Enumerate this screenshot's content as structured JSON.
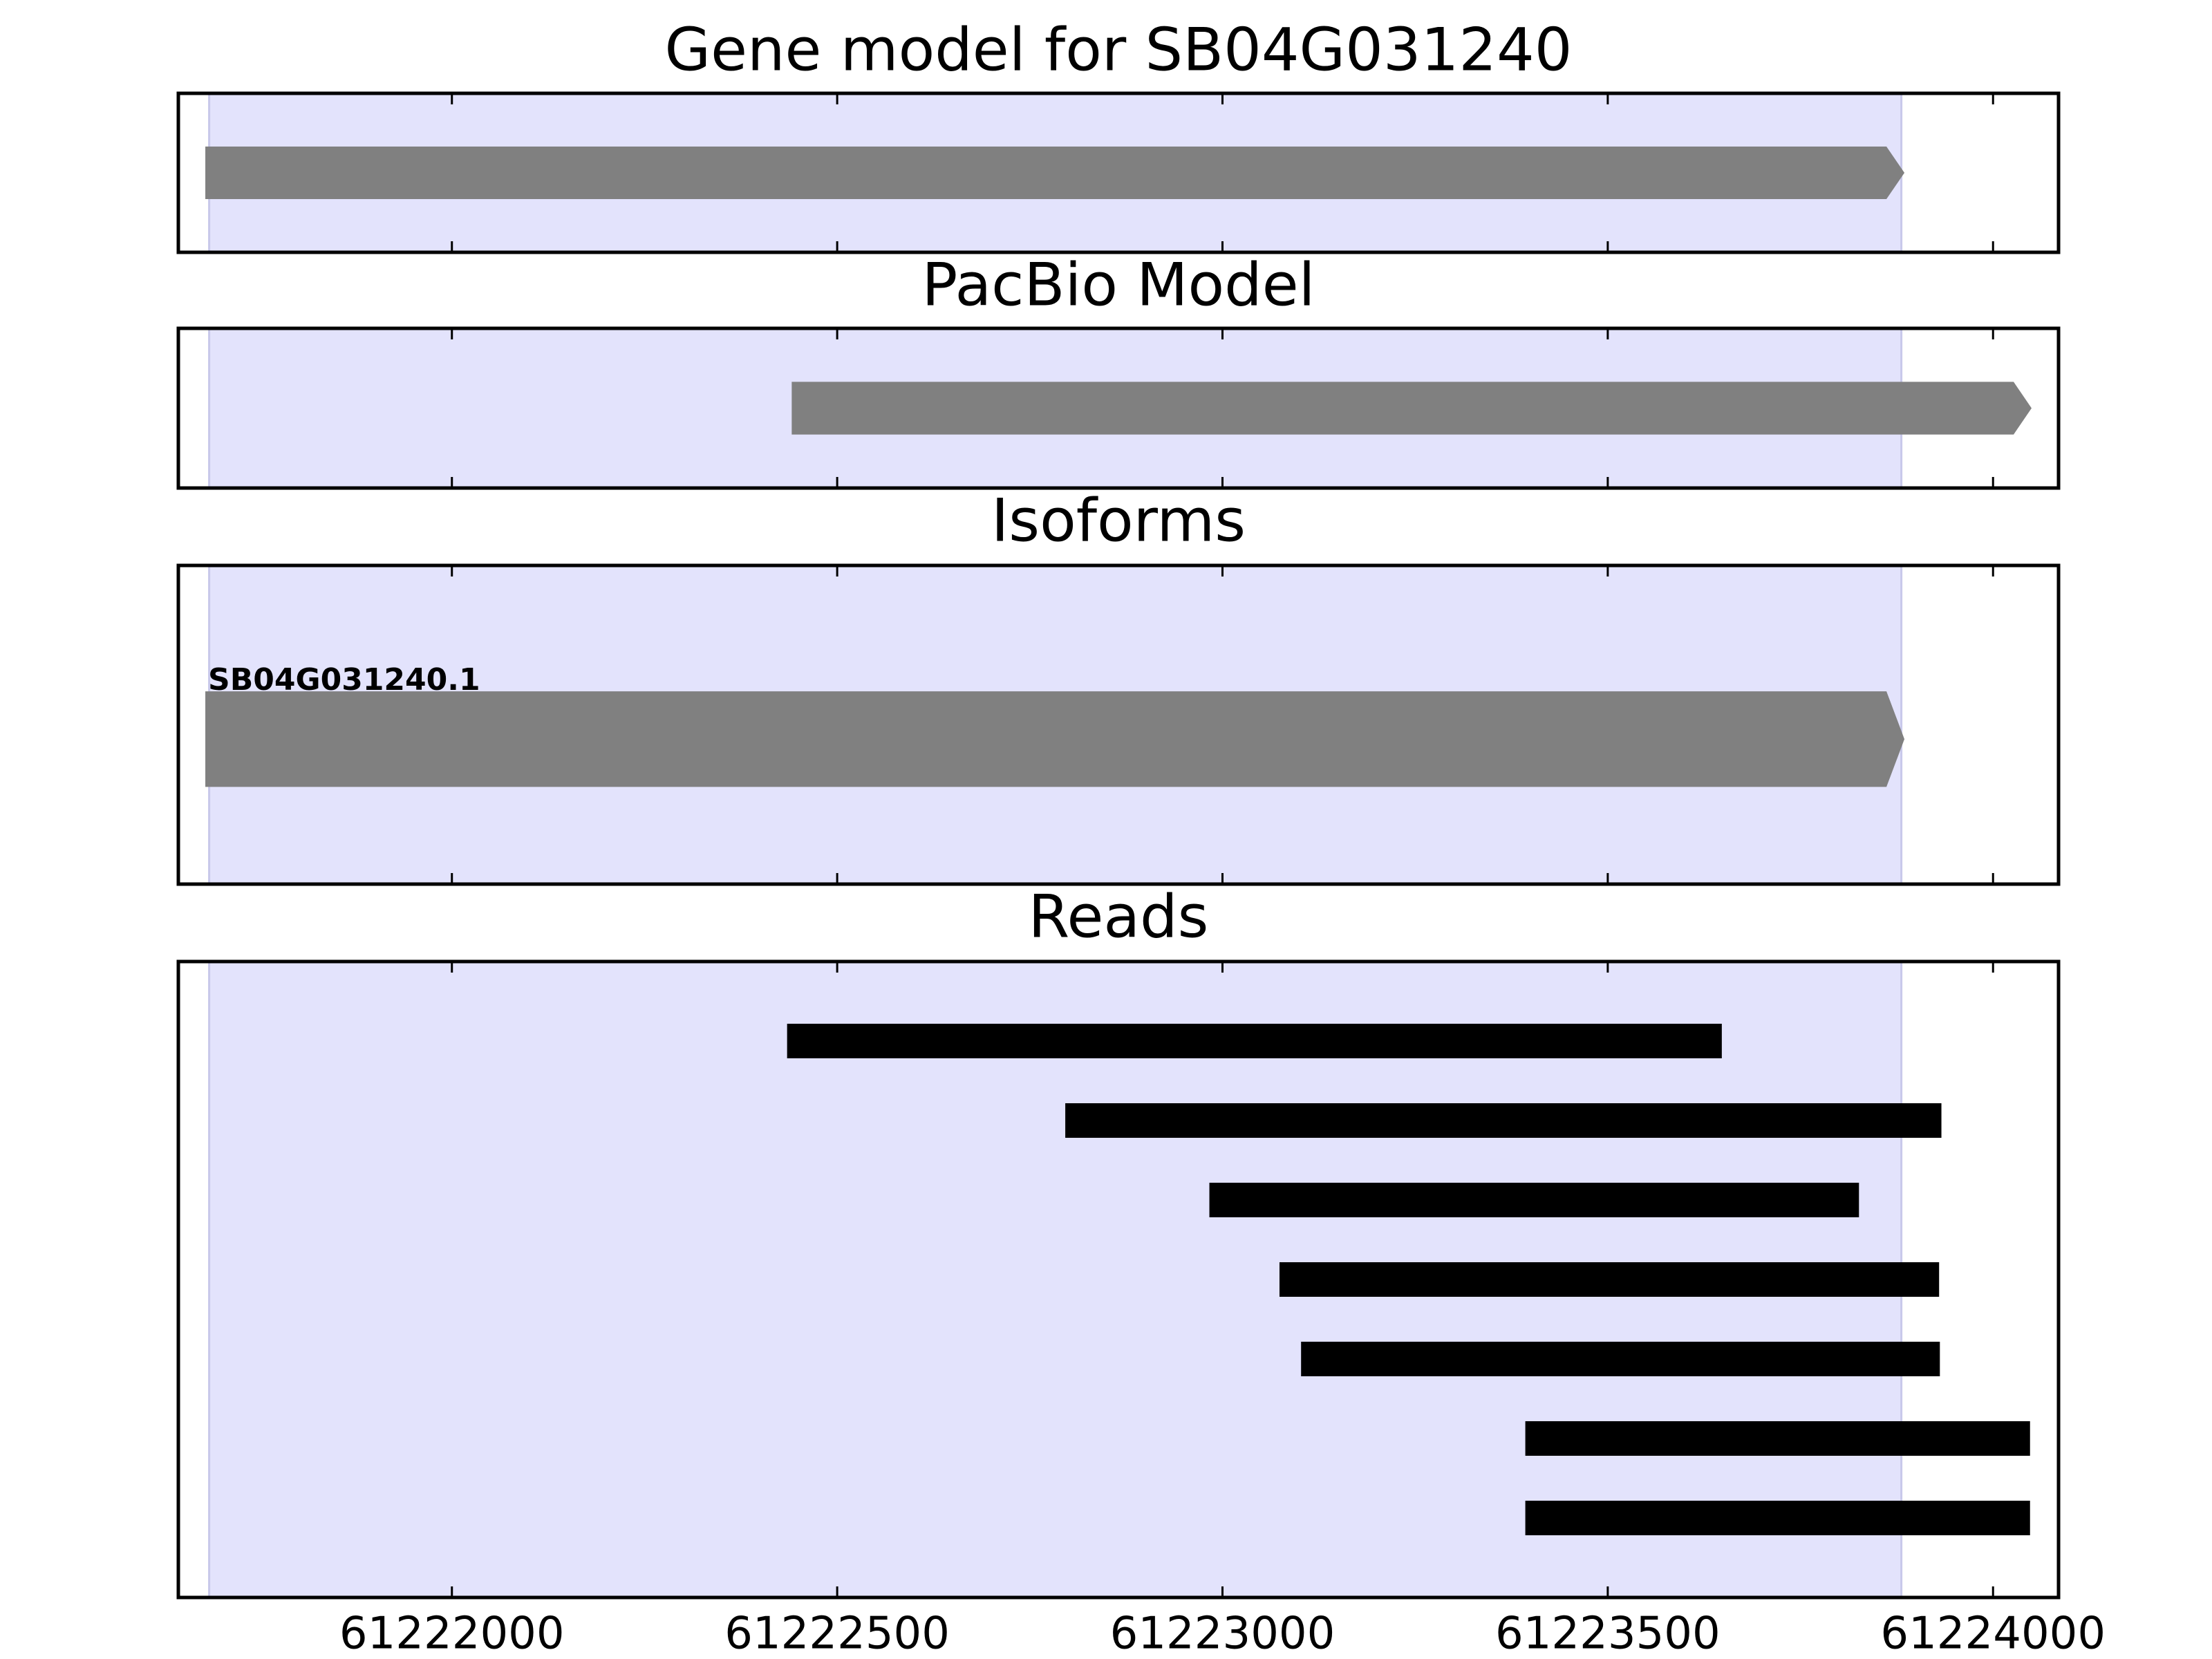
{
  "chart_data": [
    {
      "type": "track",
      "title": "Gene model for SB04G031240",
      "xlim": [
        61221645,
        61224085
      ],
      "xticks": [
        61222000,
        61222500,
        61223000,
        61223500,
        61224000
      ],
      "highlight": [
        61221685,
        61223881
      ],
      "highlight_color": "#e3e3fc",
      "color": "#808080",
      "features": [
        {
          "start": 61221680,
          "end": 61223885
        }
      ]
    },
    {
      "type": "track",
      "title": "PacBio Model",
      "xlim": [
        61221645,
        61224085
      ],
      "xticks": [
        61222000,
        61222500,
        61223000,
        61223500,
        61224000
      ],
      "highlight": [
        61221685,
        61223881
      ],
      "highlight_color": "#e3e3fc",
      "color": "#808080",
      "features": [
        {
          "start": 61222441,
          "end": 61224050
        }
      ]
    },
    {
      "type": "track",
      "title": "Isoforms",
      "xlim": [
        61221645,
        61224085
      ],
      "xticks": [
        61222000,
        61222500,
        61223000,
        61223500,
        61224000
      ],
      "highlight": [
        61221685,
        61223881
      ],
      "highlight_color": "#e3e3fc",
      "color": "#808080",
      "features": [
        {
          "start": 61221680,
          "end": 61223885,
          "label": "SB04G031240.1"
        }
      ]
    },
    {
      "type": "reads",
      "title": "Reads",
      "xlim": [
        61221645,
        61224085
      ],
      "xticks": [
        61222000,
        61222500,
        61223000,
        61223500,
        61224000
      ],
      "highlight": [
        61221685,
        61223881
      ],
      "highlight_color": "#e3e3fc",
      "color": "#000000",
      "features": [
        {
          "start": 61222435,
          "end": 61223648
        },
        {
          "start": 61222796,
          "end": 61223933
        },
        {
          "start": 61222983,
          "end": 61223826
        },
        {
          "start": 61223074,
          "end": 61223930
        },
        {
          "start": 61223102,
          "end": 61223931
        },
        {
          "start": 61223393,
          "end": 61224048
        },
        {
          "start": 61223393,
          "end": 61224048
        }
      ]
    }
  ]
}
